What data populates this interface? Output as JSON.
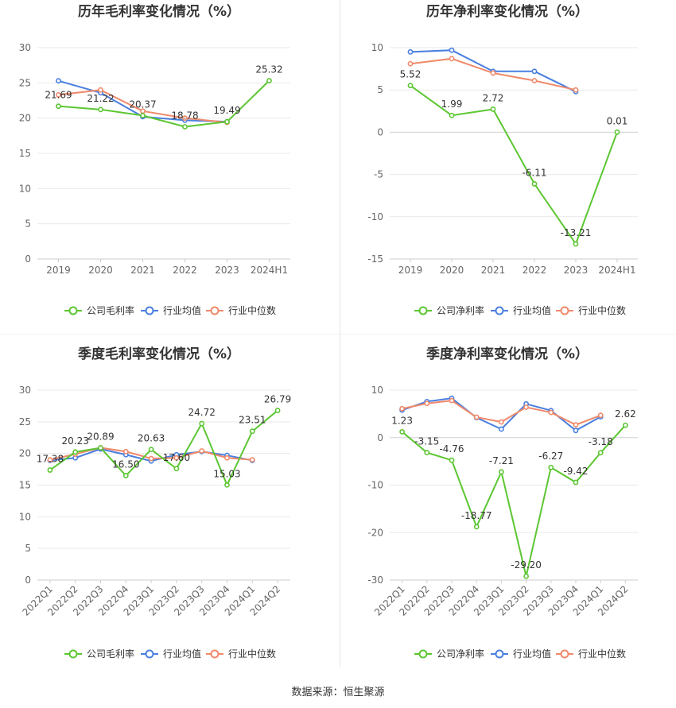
{
  "source_label": "数据来源：恒生聚源",
  "colors": {
    "company": "#5cc632",
    "industry_avg": "#4a7fe0",
    "industry_median": "#f0896a"
  },
  "chart_data": [
    {
      "type": "line",
      "title": "历年毛利率变化情况（%）",
      "categories": [
        "2019",
        "2020",
        "2021",
        "2022",
        "2023",
        "2024H1"
      ],
      "ylim": [
        0,
        30
      ],
      "yticks": [
        0,
        5,
        10,
        15,
        20,
        25,
        30
      ],
      "grid": true,
      "legend": "bottom",
      "series": [
        {
          "name": "公司毛利率",
          "values": [
            21.69,
            21.22,
            20.37,
            18.78,
            19.49,
            25.32
          ],
          "labels": [
            "21.69",
            "21.22",
            "20.37",
            "18.78",
            "19.49",
            "25.32"
          ]
        },
        {
          "name": "行业均值",
          "values": [
            25.3,
            23.6,
            20.2,
            19.7,
            19.5,
            null
          ]
        },
        {
          "name": "行业中位数",
          "values": [
            23.3,
            24.0,
            21.0,
            20.0,
            19.4,
            null
          ]
        }
      ]
    },
    {
      "type": "line",
      "title": "历年净利率变化情况（%）",
      "categories": [
        "2019",
        "2020",
        "2021",
        "2022",
        "2023",
        "2024H1"
      ],
      "ylim": [
        -15,
        10
      ],
      "yticks": [
        -15,
        -10,
        -5,
        0,
        5,
        10
      ],
      "grid": true,
      "legend": "bottom",
      "series": [
        {
          "name": "公司净利率",
          "values": [
            5.52,
            1.99,
            2.72,
            -6.11,
            -13.21,
            0.01
          ],
          "labels": [
            "5.52",
            "1.99",
            "2.72",
            "-6.11",
            "-13.21",
            "0.01"
          ]
        },
        {
          "name": "行业均值",
          "values": [
            9.5,
            9.7,
            7.2,
            7.2,
            4.8,
            null
          ]
        },
        {
          "name": "行业中位数",
          "values": [
            8.1,
            8.7,
            7.0,
            6.1,
            5.0,
            null
          ]
        }
      ]
    },
    {
      "type": "line",
      "title": "季度毛利率变化情况（%）",
      "categories": [
        "2022Q1",
        "2022Q2",
        "2022Q3",
        "2022Q4",
        "2023Q1",
        "2023Q2",
        "2023Q3",
        "2023Q4",
        "2024Q1",
        "2024Q2"
      ],
      "ylim": [
        0,
        30
      ],
      "yticks": [
        0,
        5,
        10,
        15,
        20,
        25,
        30
      ],
      "grid": true,
      "legend": "bottom",
      "series": [
        {
          "name": "公司毛利率",
          "values": [
            17.38,
            20.23,
            20.89,
            16.5,
            20.63,
            17.6,
            24.72,
            15.03,
            23.51,
            26.79
          ],
          "labels": [
            "17.38",
            "20.23",
            "20.89",
            "16.50",
            "20.63",
            "17.60",
            "24.72",
            "15.03",
            "23.51",
            "26.79"
          ]
        },
        {
          "name": "行业均值",
          "values": [
            18.9,
            19.3,
            20.7,
            19.8,
            18.8,
            19.8,
            20.3,
            19.7,
            18.9,
            null
          ]
        },
        {
          "name": "行业中位数",
          "values": [
            19.0,
            19.9,
            20.9,
            20.3,
            19.2,
            19.3,
            20.4,
            19.3,
            19.0,
            null
          ]
        }
      ]
    },
    {
      "type": "line",
      "title": "季度净利率变化情况（%）",
      "categories": [
        "2022Q1",
        "2022Q2",
        "2022Q3",
        "2022Q4",
        "2023Q1",
        "2023Q2",
        "2023Q3",
        "2023Q4",
        "2024Q1",
        "2024Q2"
      ],
      "ylim": [
        -30,
        10
      ],
      "yticks": [
        -30,
        -20,
        -10,
        0,
        10
      ],
      "grid": true,
      "legend": "bottom",
      "series": [
        {
          "name": "公司净利率",
          "values": [
            1.23,
            -3.15,
            -4.76,
            -18.77,
            -7.21,
            -29.2,
            -6.27,
            -9.42,
            -3.18,
            2.62
          ],
          "labels": [
            "1.23",
            "-3.15",
            "-4.76",
            "-18.77",
            "-7.21",
            "-29.20",
            "-6.27",
            "-9.42",
            "-3.18",
            "2.62"
          ]
        },
        {
          "name": "行业均值",
          "values": [
            5.8,
            7.6,
            8.3,
            4.2,
            1.8,
            7.1,
            5.7,
            1.5,
            4.4,
            null
          ]
        },
        {
          "name": "行业中位数",
          "values": [
            6.1,
            7.2,
            7.8,
            4.3,
            3.3,
            6.4,
            5.3,
            2.7,
            4.7,
            null
          ]
        }
      ]
    }
  ]
}
